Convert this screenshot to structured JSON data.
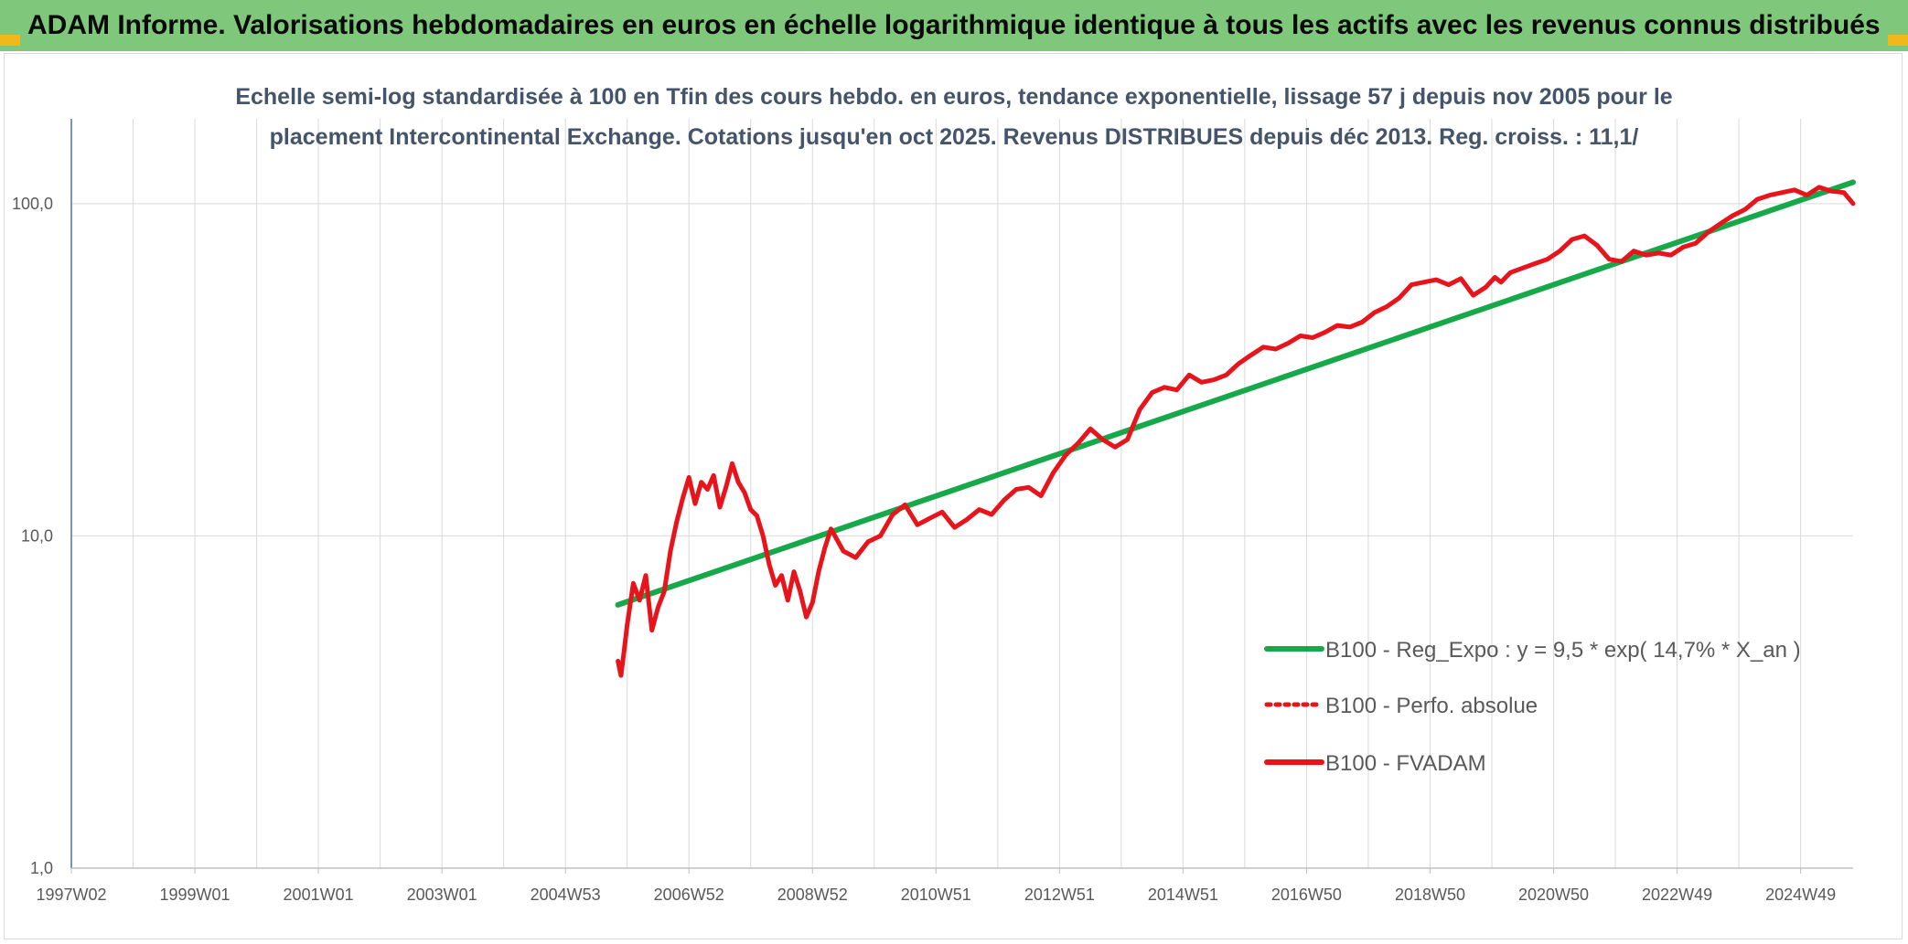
{
  "header": {
    "title": "ADAM Informe. Valorisations hebdomadaires en euros en échelle logarithmique identique à tous les actifs avec les revenus connus distribués"
  },
  "colors": {
    "header_bg": "#7fc77a",
    "trend": "#17a84a",
    "price": "#e8141c",
    "gridline": "#d9d9d9",
    "axis": "#4472c4",
    "corner_accent": "#f2b81a"
  },
  "chart_data": {
    "type": "line",
    "title_lines": [
      "Echelle semi-log standardisée à 100 en Tfin des cours hebdo. en euros, tendance exponentielle, lissage 57 j depuis nov 2005 pour le",
      "placement Intercontinental Exchange. Cotations jusqu'en oct 2025. Revenus DISTRIBUES depuis déc 2013. Reg. croiss. : 11,1/"
    ],
    "y_scale": "log",
    "ylim": [
      1,
      180
    ],
    "y_ticks": [
      "1,0",
      "10,0",
      "100,0"
    ],
    "y_tick_values": [
      1,
      10,
      100
    ],
    "xlim": [
      1997.0,
      2025.85
    ],
    "x_ticks": [
      "1997W02",
      "1999W01",
      "2001W01",
      "2003W01",
      "2004W53",
      "2006W52",
      "2008W52",
      "2010W51",
      "2012W51",
      "2014W51",
      "2016W50",
      "2018W50",
      "2020W50",
      "2022W49",
      "2024W49"
    ],
    "x_tick_values": [
      1997.0,
      1999.0,
      2001.0,
      2003.0,
      2005.0,
      2007.0,
      2009.0,
      2011.0,
      2013.0,
      2015.0,
      2017.0,
      2019.0,
      2021.0,
      2023.0,
      2025.0
    ],
    "grid": true,
    "legend_position": "bottom-right",
    "series": [
      {
        "name": "B100 - Reg_Expo : y = 9,5 * exp( 14,7% *  X_an )",
        "style": "solid-thick",
        "color": "#17a84a",
        "x": [
          2005.85,
          2025.85
        ],
        "y": [
          6.2,
          116.0
        ]
      },
      {
        "name": "B100 - Perfo. absolue",
        "style": "dotted",
        "color": "#e8141c",
        "x": [],
        "y": []
      },
      {
        "name": "B100 - FVADAM",
        "style": "solid-thick",
        "color": "#e8141c",
        "x": [
          2005.85,
          2005.9,
          2005.95,
          2006.0,
          2006.1,
          2006.2,
          2006.3,
          2006.4,
          2006.5,
          2006.6,
          2006.7,
          2006.8,
          2006.9,
          2007.0,
          2007.1,
          2007.2,
          2007.3,
          2007.4,
          2007.5,
          2007.6,
          2007.7,
          2007.8,
          2007.9,
          2008.0,
          2008.1,
          2008.2,
          2008.3,
          2008.4,
          2008.5,
          2008.6,
          2008.7,
          2008.8,
          2008.9,
          2009.0,
          2009.1,
          2009.2,
          2009.3,
          2009.5,
          2009.7,
          2009.9,
          2010.1,
          2010.3,
          2010.5,
          2010.7,
          2010.9,
          2011.1,
          2011.3,
          2011.5,
          2011.7,
          2011.9,
          2012.1,
          2012.3,
          2012.5,
          2012.7,
          2012.9,
          2013.1,
          2013.3,
          2013.5,
          2013.7,
          2013.9,
          2014.1,
          2014.3,
          2014.5,
          2014.7,
          2014.9,
          2015.1,
          2015.3,
          2015.5,
          2015.7,
          2015.9,
          2016.1,
          2016.3,
          2016.5,
          2016.7,
          2016.9,
          2017.1,
          2017.3,
          2017.5,
          2017.7,
          2017.9,
          2018.1,
          2018.3,
          2018.5,
          2018.7,
          2018.9,
          2019.1,
          2019.3,
          2019.5,
          2019.7,
          2019.9,
          2020.05,
          2020.15,
          2020.3,
          2020.5,
          2020.7,
          2020.9,
          2021.1,
          2021.3,
          2021.5,
          2021.7,
          2021.9,
          2022.1,
          2022.3,
          2022.5,
          2022.7,
          2022.9,
          2023.1,
          2023.3,
          2023.5,
          2023.7,
          2023.9,
          2024.1,
          2024.3,
          2024.5,
          2024.7,
          2024.9,
          2025.1,
          2025.3,
          2025.5,
          2025.7,
          2025.85
        ],
        "y": [
          4.2,
          3.8,
          4.5,
          5.4,
          7.2,
          6.4,
          7.6,
          5.2,
          6.1,
          6.8,
          9.0,
          11.0,
          13.0,
          15.0,
          12.5,
          14.5,
          13.8,
          15.2,
          12.2,
          14.0,
          16.5,
          14.5,
          13.5,
          12.0,
          11.5,
          10.0,
          8.2,
          7.1,
          7.6,
          6.4,
          7.8,
          6.8,
          5.7,
          6.3,
          7.8,
          9.2,
          10.5,
          9.0,
          8.6,
          9.6,
          10.0,
          11.6,
          12.4,
          10.8,
          11.3,
          11.8,
          10.6,
          11.2,
          12.0,
          11.6,
          12.8,
          13.8,
          14.0,
          13.2,
          15.5,
          17.5,
          19.0,
          21.0,
          19.5,
          18.5,
          19.5,
          24.0,
          27.0,
          28.0,
          27.5,
          30.5,
          29.0,
          29.5,
          30.5,
          33.0,
          35.0,
          37.0,
          36.5,
          38.0,
          40.0,
          39.5,
          41.0,
          43.0,
          42.5,
          44.0,
          47.0,
          49.0,
          52.0,
          57.0,
          58.0,
          59.0,
          57.0,
          59.5,
          53.0,
          56.0,
          60.0,
          58.0,
          62.0,
          64.0,
          66.0,
          68.0,
          72.0,
          78.0,
          80.0,
          75.0,
          68.0,
          67.0,
          72.0,
          70.0,
          71.0,
          70.0,
          74.0,
          76.0,
          82.0,
          87.0,
          92.0,
          96.0,
          103.0,
          106.0,
          108.0,
          110.0,
          106.0,
          112.0,
          109.0,
          108.0,
          100.0
        ]
      }
    ]
  }
}
